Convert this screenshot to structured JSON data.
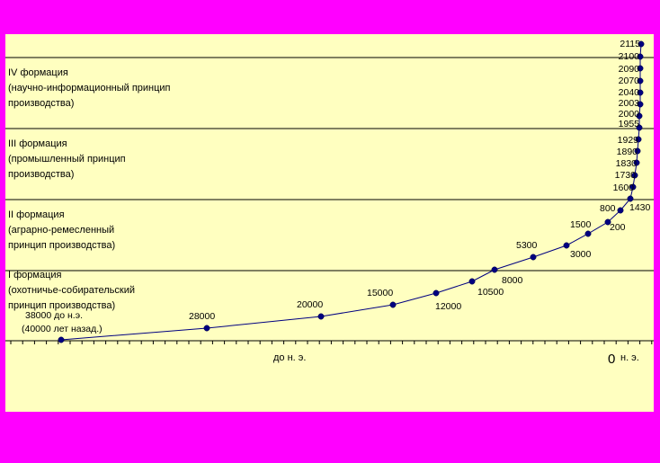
{
  "chart_data": {
    "type": "line",
    "title": "",
    "xlabel": "",
    "ylabel": "",
    "axis_labels": {
      "bc": "до н. э.",
      "zero": "0",
      "ad": "н. э."
    },
    "bands": [
      {
        "lines": [
          "I формация",
          "(охотничье-собирательский",
          "принцип производства)"
        ]
      },
      {
        "lines": [
          "II формация",
          "(аграрно-ремесленный",
          "принцип производства)"
        ]
      },
      {
        "lines": [
          "III формация",
          "(промышленный принцип",
          "производства)"
        ]
      },
      {
        "lines": [
          "IV формация",
          "(научно-информационный принцип",
          "производства)"
        ]
      }
    ],
    "series": [
      {
        "points": [
          {
            "label": "38000 до н.э.",
            "label2": "(40000 лет назад.)",
            "color": "#000000"
          },
          {
            "label": "28000",
            "color": "#000000"
          },
          {
            "label": "20000",
            "color": "#000000"
          },
          {
            "label": "15000",
            "color": "#000000"
          },
          {
            "label": "12000",
            "color": "#000000"
          },
          {
            "label": "10500",
            "color": "#000000"
          },
          {
            "label": "8000",
            "color": "#000000"
          },
          {
            "label": "5300",
            "color": "#000000"
          },
          {
            "label": "3000",
            "color": "#000000"
          },
          {
            "label": "1500",
            "color": "#000000"
          },
          {
            "label": "200",
            "color": "#000000"
          },
          {
            "label": "800",
            "color": "#000000"
          },
          {
            "label": "1430",
            "color": "#000000"
          },
          {
            "label": "1600",
            "color": "#000000"
          },
          {
            "label": "1730",
            "color": "#000000"
          },
          {
            "label": "1830",
            "color": "#000000"
          },
          {
            "label": "1890",
            "color": "#000000"
          },
          {
            "label": "1929",
            "color": "#000000"
          },
          {
            "label": "1955",
            "color": "#000000"
          },
          {
            "label": "2000",
            "color": "#000000"
          },
          {
            "label": "2003",
            "color": "#ff0000"
          },
          {
            "label": "2040",
            "color": "#000000"
          },
          {
            "label": "2070",
            "color": "#000000"
          },
          {
            "label": "2090",
            "color": "#000000"
          },
          {
            "label": "2100",
            "color": "#000000"
          },
          {
            "label": "2115",
            "color": "#000000"
          }
        ]
      }
    ],
    "colors": {
      "background": "#ffffc0",
      "frame": "#ff00ff",
      "line": "#000080",
      "marker": "#000080",
      "grid": "#000000"
    }
  }
}
